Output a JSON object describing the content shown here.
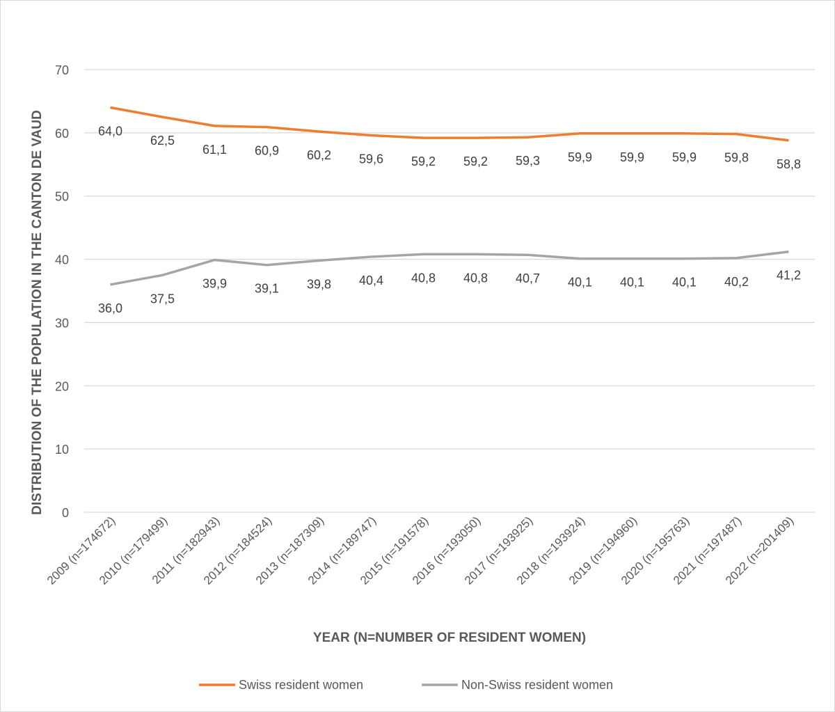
{
  "chart_data": {
    "type": "line",
    "title": "",
    "xlabel": "YEAR (N=NUMBER OF RESIDENT WOMEN)",
    "ylabel": "DISTRIBUTION OF THE POPULATION IN THE CANTON DE VAUD",
    "ylim": [
      0,
      70
    ],
    "yticks": [
      0,
      10,
      20,
      30,
      40,
      50,
      60,
      70
    ],
    "grid": true,
    "legend_position": "bottom",
    "categories": [
      "2009 (n=174672)",
      "2010 (n=179499)",
      "2011 (n=182943)",
      "2012 (n=184524)",
      "2013 (n=187309)",
      "2014 (n=189747)",
      "2015 (n=191578)",
      "2016 (n=193050)",
      "2017 (n=193925)",
      "2018 (n=193924)",
      "2019 (n=194960)",
      "2020 (n=195763)",
      "2021 (n=197487)",
      "2022 (n=201409)"
    ],
    "series": [
      {
        "name": "Swiss resident women",
        "color": "#ed7d31",
        "values": [
          64.0,
          62.5,
          61.1,
          60.9,
          60.2,
          59.6,
          59.2,
          59.2,
          59.3,
          59.9,
          59.9,
          59.9,
          59.8,
          58.8
        ]
      },
      {
        "name": "Non-Swiss resident women",
        "color": "#a5a5a5",
        "values": [
          36.0,
          37.5,
          39.9,
          39.1,
          39.8,
          40.4,
          40.8,
          40.8,
          40.7,
          40.1,
          40.1,
          40.1,
          40.2,
          41.2
        ]
      }
    ]
  }
}
